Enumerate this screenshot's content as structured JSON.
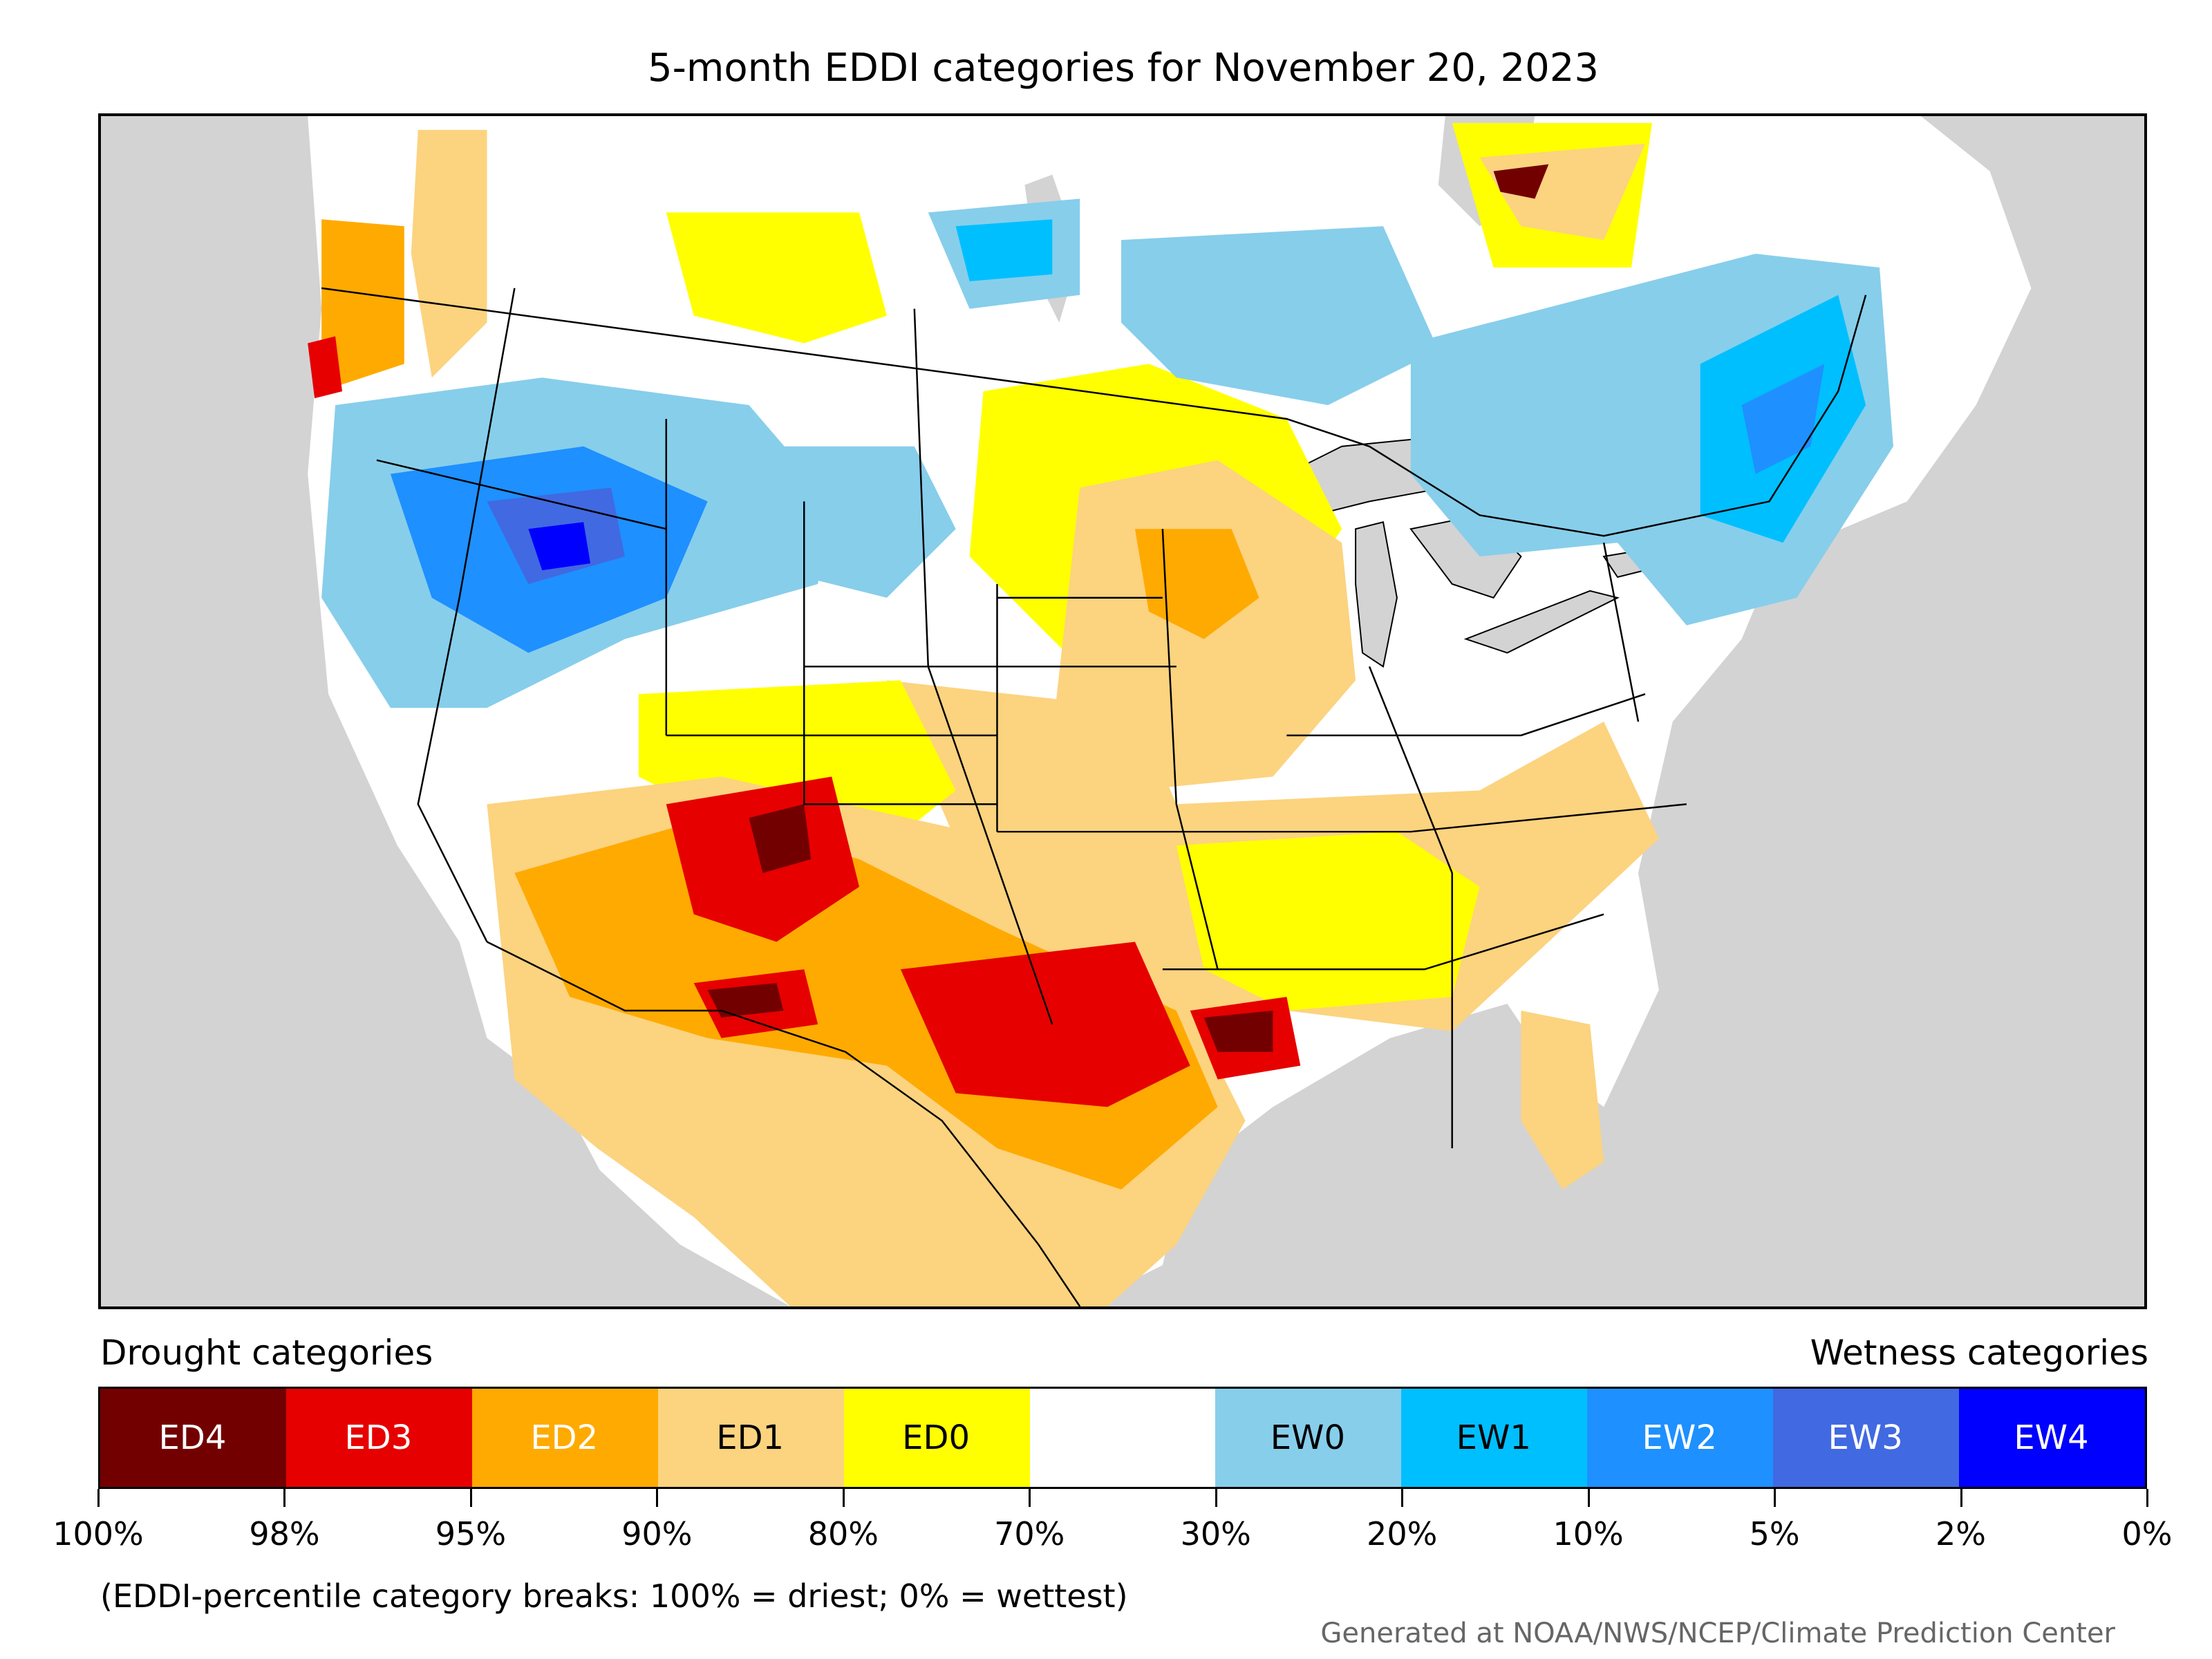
{
  "title": "5-month EDDI categories for November 20, 2023",
  "legend": {
    "drought_heading": "Drought categories",
    "wetness_heading": "Wetness categories",
    "categories": [
      {
        "label": "ED4",
        "color": "#730000",
        "text_color": "#ffffff"
      },
      {
        "label": "ED3",
        "color": "#e60000",
        "text_color": "#ffffff"
      },
      {
        "label": "ED2",
        "color": "#ffaa00",
        "text_color": "#ffffff"
      },
      {
        "label": "ED1",
        "color": "#fcd37f",
        "text_color": "#000000"
      },
      {
        "label": "ED0",
        "color": "#ffff00",
        "text_color": "#000000"
      },
      {
        "label": "",
        "color": "#ffffff",
        "text_color": "#000000"
      },
      {
        "label": "EW0",
        "color": "#87ceeb",
        "text_color": "#000000"
      },
      {
        "label": "EW1",
        "color": "#00bfff",
        "text_color": "#000000"
      },
      {
        "label": "EW2",
        "color": "#1e90ff",
        "text_color": "#ffffff"
      },
      {
        "label": "EW3",
        "color": "#4169e1",
        "text_color": "#ffffff"
      },
      {
        "label": "EW4",
        "color": "#0000ff",
        "text_color": "#ffffff"
      }
    ],
    "breaks": [
      "100%",
      "98%",
      "95%",
      "90%",
      "80%",
      "70%",
      "30%",
      "20%",
      "10%",
      "5%",
      "2%",
      "0%"
    ]
  },
  "footnote": "(EDDI-percentile category breaks: 100% = driest; 0% = wettest)",
  "credit": "Generated at NOAA/NWS/NCEP/Climate Prediction Center",
  "colors": {
    "background_land_outside": "#d3d3d3",
    "water": "#d3d3d3",
    "boundary": "#000000"
  }
}
